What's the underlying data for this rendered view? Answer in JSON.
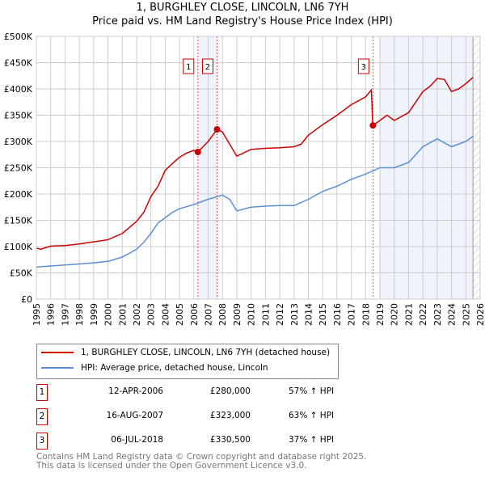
{
  "chart_data": {
    "type": "line",
    "title": "1, BURGHLEY CLOSE, LINCOLN, LN6 7YH",
    "subtitle": "Price paid vs. HM Land Registry's House Price Index (HPI)",
    "xlim": [
      1995,
      2026
    ],
    "ylim": [
      0,
      500000
    ],
    "yticks": [
      0,
      50000,
      100000,
      150000,
      200000,
      250000,
      300000,
      350000,
      400000,
      450000,
      500000
    ],
    "ytick_labels": [
      "£0",
      "£50K",
      "£100K",
      "£150K",
      "£200K",
      "£250K",
      "£300K",
      "£350K",
      "£400K",
      "£450K",
      "£500K"
    ],
    "xticks": [
      "1995",
      "1996",
      "1997",
      "1998",
      "1999",
      "2000",
      "2001",
      "2002",
      "2003",
      "2004",
      "2005",
      "2006",
      "2007",
      "2008",
      "2009",
      "2010",
      "2011",
      "2012",
      "2013",
      "2014",
      "2015",
      "2016",
      "2017",
      "2018",
      "2019",
      "2020",
      "2021",
      "2022",
      "2023",
      "2024",
      "2025",
      "2026"
    ],
    "grid": true,
    "shaded_ranges": [
      [
        2006.28,
        2007.62
      ],
      [
        2019.0,
        2025.5
      ]
    ],
    "hatched_from": 2025.5,
    "series": [
      {
        "name": "1, BURGHLEY CLOSE, LINCOLN, LN6 7YH (detached house)",
        "color": "#cc0000",
        "x": [
          1995,
          1995.3,
          1996,
          1997,
          1998,
          1999,
          2000,
          2001,
          2002,
          2002.5,
          2003,
          2003.5,
          2004,
          2004.5,
          2005,
          2005.5,
          2006,
          2006.28,
          2007,
          2007.62,
          2008,
          2008.5,
          2009,
          2010,
          2011,
          2012,
          2013,
          2013.5,
          2014,
          2015,
          2016,
          2017,
          2018,
          2018.4,
          2018.5,
          2019,
          2019.5,
          2020,
          2021,
          2022,
          2022.5,
          2023,
          2023.5,
          2024,
          2024.5,
          2025,
          2025.5
        ],
        "y": [
          97000,
          95000,
          101000,
          102000,
          105000,
          109000,
          113000,
          125000,
          148000,
          165000,
          195000,
          215000,
          245000,
          258000,
          270000,
          278000,
          283000,
          280000,
          300000,
          323000,
          318000,
          295000,
          272000,
          285000,
          287000,
          288000,
          290000,
          295000,
          312000,
          332000,
          350000,
          370000,
          385000,
          398000,
          330500,
          340000,
          350000,
          340000,
          355000,
          395000,
          405000,
          420000,
          418000,
          395000,
          400000,
          410000,
          422000
        ]
      },
      {
        "name": "HPI: Average price, detached house, Lincoln",
        "color": "#5b8fd4",
        "x": [
          1995,
          1996,
          1997,
          1998,
          1999,
          2000,
          2001,
          2002,
          2002.5,
          2003,
          2003.5,
          2004,
          2004.5,
          2005,
          2006,
          2007,
          2008,
          2008.5,
          2009,
          2010,
          2011,
          2012,
          2013,
          2014,
          2015,
          2016,
          2017,
          2018,
          2019,
          2020,
          2021,
          2022,
          2023,
          2024,
          2025,
          2025.5
        ],
        "y": [
          61000,
          63000,
          65000,
          67000,
          69000,
          72000,
          80000,
          95000,
          108000,
          125000,
          145000,
          155000,
          165000,
          172000,
          180000,
          190000,
          198000,
          190000,
          168000,
          175000,
          177000,
          178000,
          178000,
          190000,
          205000,
          215000,
          228000,
          238000,
          250000,
          250000,
          260000,
          290000,
          305000,
          290000,
          300000,
          310000
        ]
      }
    ],
    "markers": [
      {
        "label": "1",
        "x": 2006.28,
        "y": 280000
      },
      {
        "label": "2",
        "x": 2007.62,
        "y": 323000
      },
      {
        "label": "3",
        "x": 2018.51,
        "y": 330500
      }
    ]
  },
  "legend": {
    "items": [
      "1, BURGHLEY CLOSE, LINCOLN, LN6 7YH (detached house)",
      "HPI: Average price, detached house, Lincoln"
    ]
  },
  "sales": [
    {
      "num": "1",
      "date": "12-APR-2006",
      "price": "£280,000",
      "hpi": "57% ↑ HPI"
    },
    {
      "num": "2",
      "date": "16-AUG-2007",
      "price": "£323,000",
      "hpi": "63% ↑ HPI"
    },
    {
      "num": "3",
      "date": "06-JUL-2018",
      "price": "£330,500",
      "hpi": "37% ↑ HPI"
    }
  ],
  "footer": {
    "line1": "Contains HM Land Registry data © Crown copyright and database right 2025.",
    "line2": "This data is licensed under the Open Government Licence v3.0."
  }
}
